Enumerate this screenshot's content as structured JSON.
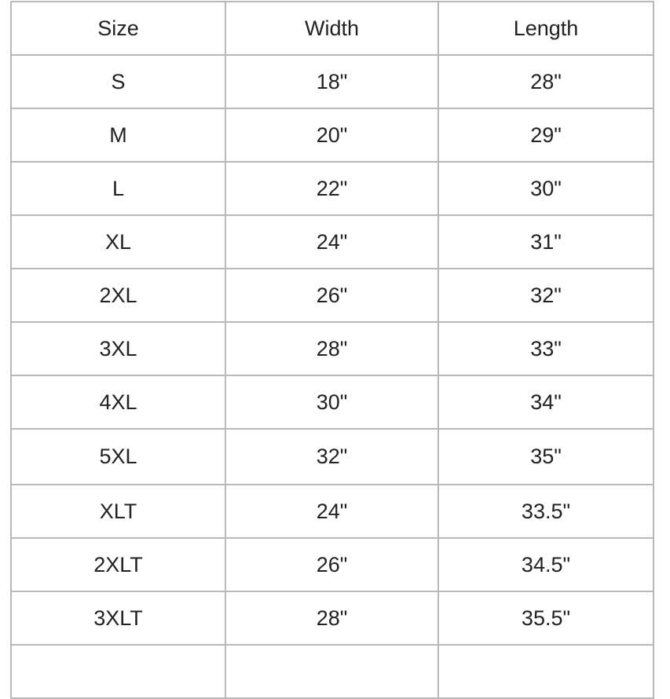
{
  "table": {
    "headers": [
      "Size",
      "Width",
      "Length"
    ],
    "rows": [
      [
        "S",
        "18\"",
        "28\""
      ],
      [
        "M",
        "20\"",
        "29\""
      ],
      [
        "L",
        "22\"",
        "30\""
      ],
      [
        "XL",
        "24\"",
        "31\""
      ],
      [
        "2XL",
        "26\"",
        "32\""
      ],
      [
        "3XL",
        "28\"",
        "33\""
      ],
      [
        "4XL",
        "30\"",
        "34\""
      ],
      [
        "5XL",
        "32\"",
        "35\""
      ],
      [
        "XLT",
        "24\"",
        "33.5\""
      ],
      [
        "2XLT",
        "26\"",
        "34.5\""
      ],
      [
        "3XLT",
        "28\"",
        "35.5\""
      ]
    ]
  }
}
